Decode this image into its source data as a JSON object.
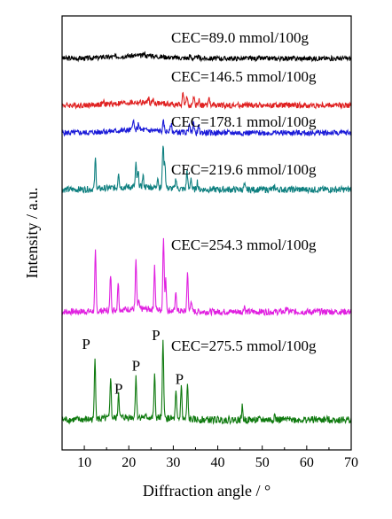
{
  "chart_data": {
    "type": "line",
    "xlabel": "Diffraction angle / °",
    "ylabel": "Intensity / a.u.",
    "xlim": [
      5,
      70
    ],
    "x_ticks": [
      10,
      20,
      30,
      40,
      50,
      60,
      70
    ],
    "x_tick_labels": [
      "10",
      "20",
      "30",
      "40",
      "50",
      "60",
      "70"
    ],
    "y_ticks_shown": false,
    "grid": false,
    "series": [
      {
        "name": "CEC=89.0 mmol/100g",
        "color": "#000000",
        "peaks": [
          [
            14.2,
            0.25
          ],
          [
            23.5,
            0.3
          ],
          [
            24.8,
            0.25
          ],
          [
            33.8,
            0.35
          ],
          [
            35.5,
            0.25
          ]
        ],
        "noise": 0.6
      },
      {
        "name": "CEC=146.5 mmol/100g",
        "color": "#e02020",
        "peaks": [
          [
            14.3,
            0.3
          ],
          [
            24.4,
            0.6
          ],
          [
            25.5,
            0.4
          ],
          [
            32.2,
            1.6
          ],
          [
            33.1,
            1.0
          ],
          [
            34.6,
            0.9
          ],
          [
            35.8,
            0.8
          ],
          [
            38.0,
            1.0
          ]
        ],
        "noise": 0.7
      },
      {
        "name": "CEC=178.1 mmol/100g",
        "color": "#1a1ad8",
        "peaks": [
          [
            14.3,
            0.3
          ],
          [
            21.0,
            1.5
          ],
          [
            22.2,
            0.9
          ],
          [
            27.8,
            1.2
          ],
          [
            29.5,
            1.0
          ],
          [
            33.6,
            1.3
          ],
          [
            34.5,
            1.5
          ],
          [
            35.7,
            0.8
          ]
        ],
        "noise": 0.7
      },
      {
        "name": "CEC=219.6 mmol/100g",
        "color": "#0f8080",
        "peaks": [
          [
            12.5,
            3.8
          ],
          [
            17.7,
            2.0
          ],
          [
            21.6,
            2.8
          ],
          [
            22.1,
            1.8
          ],
          [
            23.2,
            1.4
          ],
          [
            26.5,
            1.4
          ],
          [
            27.7,
            5.5
          ],
          [
            28.1,
            3.3
          ],
          [
            30.6,
            1.4
          ],
          [
            33.1,
            2.4
          ],
          [
            34.0,
            1.5
          ],
          [
            35.4,
            1.0
          ],
          [
            46.0,
            0.6
          ],
          [
            52.8,
            0.4
          ]
        ],
        "noise": 0.8
      },
      {
        "name": "CEC=254.3 mmol/100g",
        "color": "#e020e0",
        "peaks": [
          [
            12.5,
            7.4
          ],
          [
            15.9,
            4.5
          ],
          [
            17.6,
            3.5
          ],
          [
            21.6,
            6.1
          ],
          [
            22.2,
            1.0
          ],
          [
            25.8,
            5.5
          ],
          [
            27.8,
            9.4
          ],
          [
            28.3,
            3.8
          ],
          [
            30.6,
            2.4
          ],
          [
            33.2,
            5.0
          ],
          [
            34.0,
            1.5
          ],
          [
            46.0,
            0.8
          ],
          [
            55.5,
            0.6
          ]
        ],
        "noise": 0.8
      },
      {
        "name": "CEC=275.5 mmol/100g",
        "color": "#0f7a0f",
        "peaks": [
          [
            12.4,
            8.0
          ],
          [
            15.9,
            5.3
          ],
          [
            17.7,
            3.3
          ],
          [
            21.6,
            5.3
          ],
          [
            25.8,
            5.3
          ],
          [
            27.7,
            9.8
          ],
          [
            30.6,
            3.3
          ],
          [
            31.8,
            4.3
          ],
          [
            33.2,
            4.3
          ],
          [
            45.5,
            1.6
          ],
          [
            52.8,
            0.6
          ],
          [
            56.3,
            0.6
          ]
        ],
        "noise": 0.9
      }
    ],
    "annotations": [
      {
        "text": "P",
        "x": 12.4,
        "series": 5
      },
      {
        "text": "P",
        "x": 17.7,
        "series": 5
      },
      {
        "text": "P",
        "x": 21.6,
        "series": 5
      },
      {
        "text": "P",
        "x": 27.7,
        "series": 5
      },
      {
        "text": "P",
        "x": 32.2,
        "series": 5
      }
    ]
  }
}
